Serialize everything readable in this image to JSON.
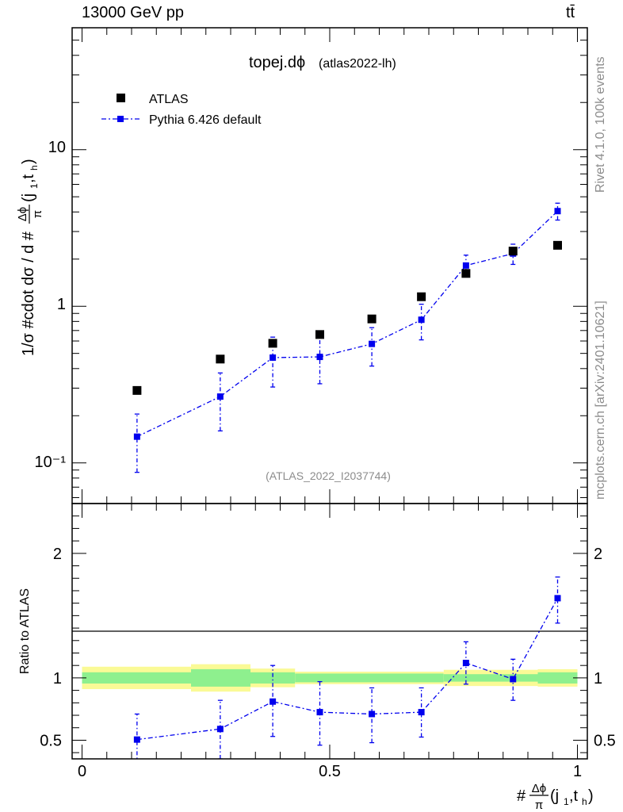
{
  "header": {
    "left": "13000 GeV pp",
    "right": "tt̄"
  },
  "side_labels": {
    "rivet": "Rivet 4.1.0,  100k events",
    "mcplots": "mcplots.cern.ch [arXiv:2401.10621]"
  },
  "colors": {
    "data": "#000000",
    "mc": "#0000ee",
    "band_inner": "#8ef08e",
    "band_outer": "#fafa96",
    "grey_text": "#8c8c8c"
  },
  "chart_data": [
    {
      "type": "scatter",
      "title": "topej.dϕ",
      "subtitle": "(atlas2022-lh)",
      "watermark": "(ATLAS_2022_I2037744)",
      "ylabel": "1/σ #cdot dσ / d #Δϕ/π(j1,th)",
      "ylabel_prefix": "1/σ #cdot dσ / d #",
      "yscale": "log",
      "ylim": [
        0.055,
        60
      ],
      "xlim": [
        -0.02,
        1.02
      ],
      "ytick_labels": [
        "10⁻¹",
        "1",
        "10"
      ],
      "legend_position": "top-left",
      "legend": [
        "ATLAS",
        "Pythia 6.426 default"
      ],
      "x": [
        0.111,
        0.279,
        0.385,
        0.48,
        0.585,
        0.685,
        0.775,
        0.87,
        0.96
      ],
      "series": [
        {
          "name": "ATLAS",
          "values": [
            0.29,
            0.46,
            0.58,
            0.66,
            0.83,
            1.15,
            1.62,
            2.25,
            2.45
          ]
        },
        {
          "name": "Pythia 6.426 default",
          "values": [
            0.147,
            0.265,
            0.47,
            0.475,
            0.575,
            0.82,
            1.82,
            2.17,
            4.05
          ],
          "err_low": [
            0.087,
            0.16,
            0.305,
            0.32,
            0.415,
            0.61,
            1.55,
            1.85,
            3.55
          ],
          "err_high": [
            0.205,
            0.375,
            0.635,
            0.635,
            0.73,
            1.03,
            2.12,
            2.49,
            4.55
          ]
        }
      ]
    },
    {
      "type": "line",
      "ylabel": "Ratio to ATLAS",
      "xlabel": "#Δϕ/π(j1,th)",
      "xlabel_prefix": "#",
      "ylim": [
        0.35,
        2.4
      ],
      "xlim": [
        -0.02,
        1.02
      ],
      "yticks": [
        0.5,
        1,
        2
      ],
      "ytick_labels": [
        "0.5",
        "1",
        "2"
      ],
      "xticks": [
        0,
        0.5,
        1
      ],
      "xtick_labels": [
        "0",
        "0.5",
        "1"
      ],
      "x": [
        0.111,
        0.279,
        0.385,
        0.48,
        0.585,
        0.685,
        0.775,
        0.87,
        0.96
      ],
      "series": [
        {
          "name": "Pythia 6.426 default",
          "values": [
            0.505,
            0.59,
            0.81,
            0.725,
            0.71,
            0.725,
            1.12,
            0.99,
            1.64
          ],
          "err_low": [
            0.3,
            0.35,
            0.53,
            0.46,
            0.48,
            0.525,
            0.95,
            0.82,
            1.44
          ],
          "err_high": [
            0.71,
            0.82,
            1.1,
            0.97,
            0.92,
            0.92,
            1.29,
            1.15,
            1.81
          ]
        }
      ],
      "bands": {
        "edges": [
          0.0,
          0.22,
          0.34,
          0.43,
          0.64,
          0.73,
          0.92,
          1.0
        ],
        "inner": [
          [
            0.955,
            1.045
          ],
          [
            0.93,
            1.07
          ],
          [
            0.955,
            1.045
          ],
          [
            0.965,
            1.035
          ],
          [
            0.965,
            1.035
          ],
          [
            0.97,
            1.03
          ],
          [
            0.955,
            1.045
          ]
        ],
        "outer": [
          [
            0.91,
            1.09
          ],
          [
            0.89,
            1.11
          ],
          [
            0.925,
            1.075
          ],
          [
            0.95,
            1.05
          ],
          [
            0.95,
            1.05
          ],
          [
            0.935,
            1.065
          ],
          [
            0.93,
            1.07
          ]
        ]
      }
    }
  ]
}
